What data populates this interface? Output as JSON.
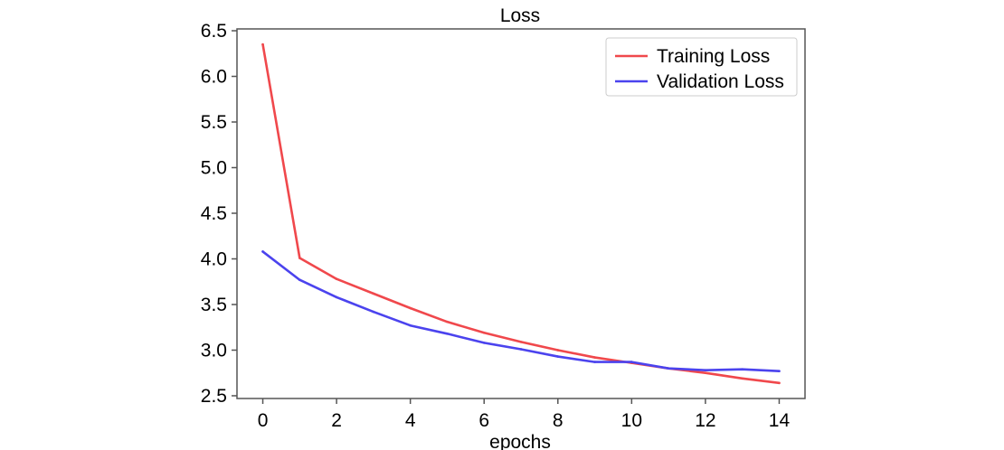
{
  "chart_data": {
    "type": "line",
    "title": "Loss",
    "xlabel": "epochs",
    "ylabel": "",
    "x": [
      0,
      1,
      2,
      3,
      4,
      5,
      6,
      7,
      8,
      9,
      10,
      11,
      12,
      13,
      14
    ],
    "xlim": [
      -0.7,
      14.7
    ],
    "ylim": [
      2.47,
      6.52
    ],
    "xticks": [
      0,
      2,
      4,
      6,
      8,
      10,
      12,
      14
    ],
    "yticks": [
      2.5,
      3.0,
      3.5,
      4.0,
      4.5,
      5.0,
      5.5,
      6.0,
      6.5
    ],
    "ytick_labels": [
      "2.5",
      "3.0",
      "3.5",
      "4.0",
      "4.5",
      "5.0",
      "5.5",
      "6.0",
      "6.5"
    ],
    "grid": false,
    "legend_position": "top-right",
    "series": [
      {
        "name": "Training Loss",
        "color": "#f0484c",
        "values": [
          6.35,
          4.01,
          3.78,
          3.62,
          3.46,
          3.31,
          3.19,
          3.09,
          3.0,
          2.92,
          2.86,
          2.8,
          2.75,
          2.69,
          2.64
        ]
      },
      {
        "name": "Validation Loss",
        "color": "#4b43ee",
        "values": [
          4.08,
          3.77,
          3.58,
          3.42,
          3.27,
          3.18,
          3.08,
          3.01,
          2.93,
          2.87,
          2.87,
          2.8,
          2.78,
          2.79,
          2.77
        ]
      }
    ]
  }
}
